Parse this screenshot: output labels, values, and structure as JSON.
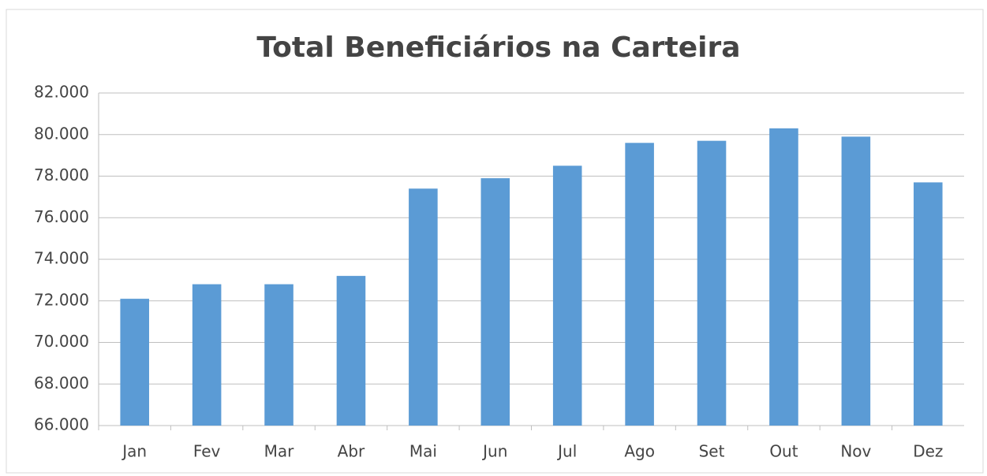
{
  "chart_data": {
    "type": "bar",
    "title": "Total Beneficiários na Carteira",
    "categories": [
      "Jan",
      "Fev",
      "Mar",
      "Abr",
      "Mai",
      "Jun",
      "Jul",
      "Ago",
      "Set",
      "Out",
      "Nov",
      "Dez"
    ],
    "values": [
      72100,
      72800,
      72800,
      73200,
      77400,
      77900,
      78500,
      79600,
      79700,
      80300,
      79900,
      77700
    ],
    "color": "#5b9bd5",
    "ylim": [
      66000,
      82000
    ],
    "yticks": [
      {
        "value": 66000,
        "label": "66.000"
      },
      {
        "value": 68000,
        "label": "68.000"
      },
      {
        "value": 70000,
        "label": "70.000"
      },
      {
        "value": 72000,
        "label": "72.000"
      },
      {
        "value": 74000,
        "label": "74.000"
      },
      {
        "value": 76000,
        "label": "76.000"
      },
      {
        "value": 78000,
        "label": "78.000"
      },
      {
        "value": 80000,
        "label": "80.000"
      },
      {
        "value": 82000,
        "label": "82.000"
      }
    ],
    "grid": true
  }
}
